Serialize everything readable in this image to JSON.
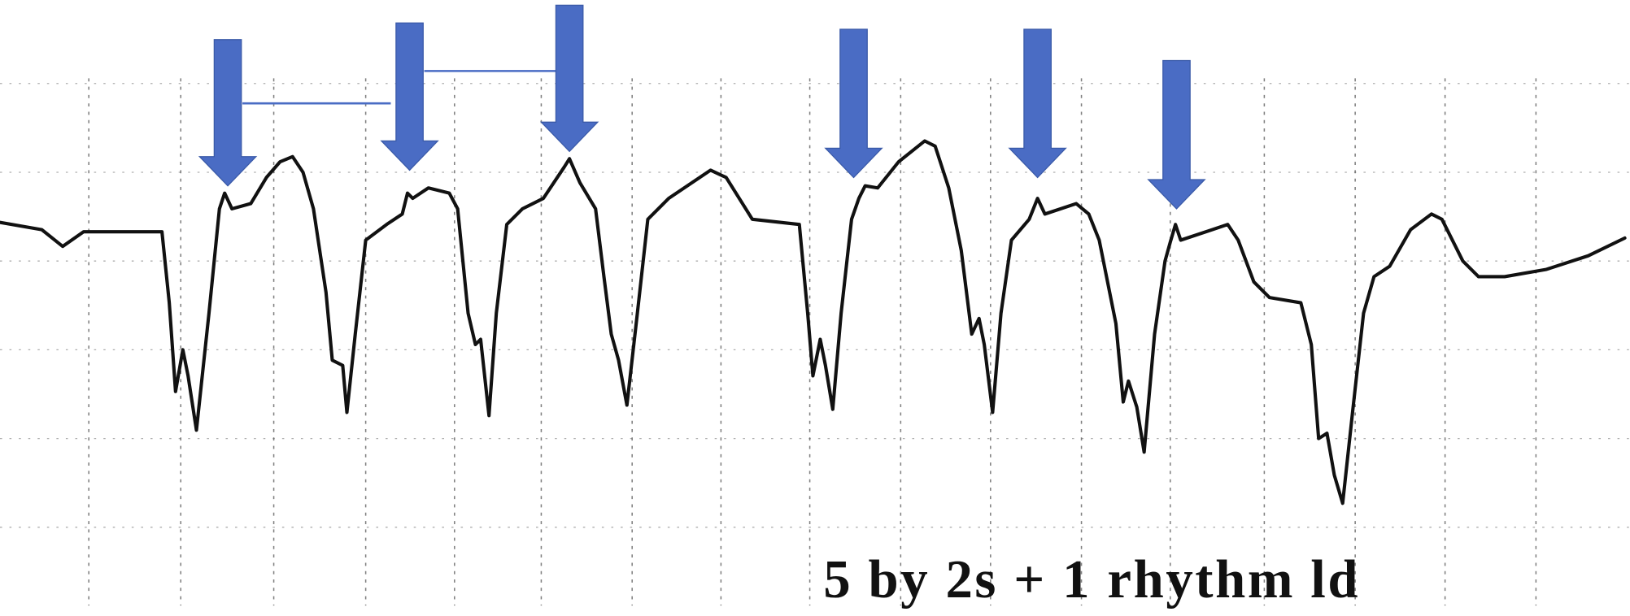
{
  "annotation": {
    "text": "5 by 2s + 1 rhythm ld"
  }
}
